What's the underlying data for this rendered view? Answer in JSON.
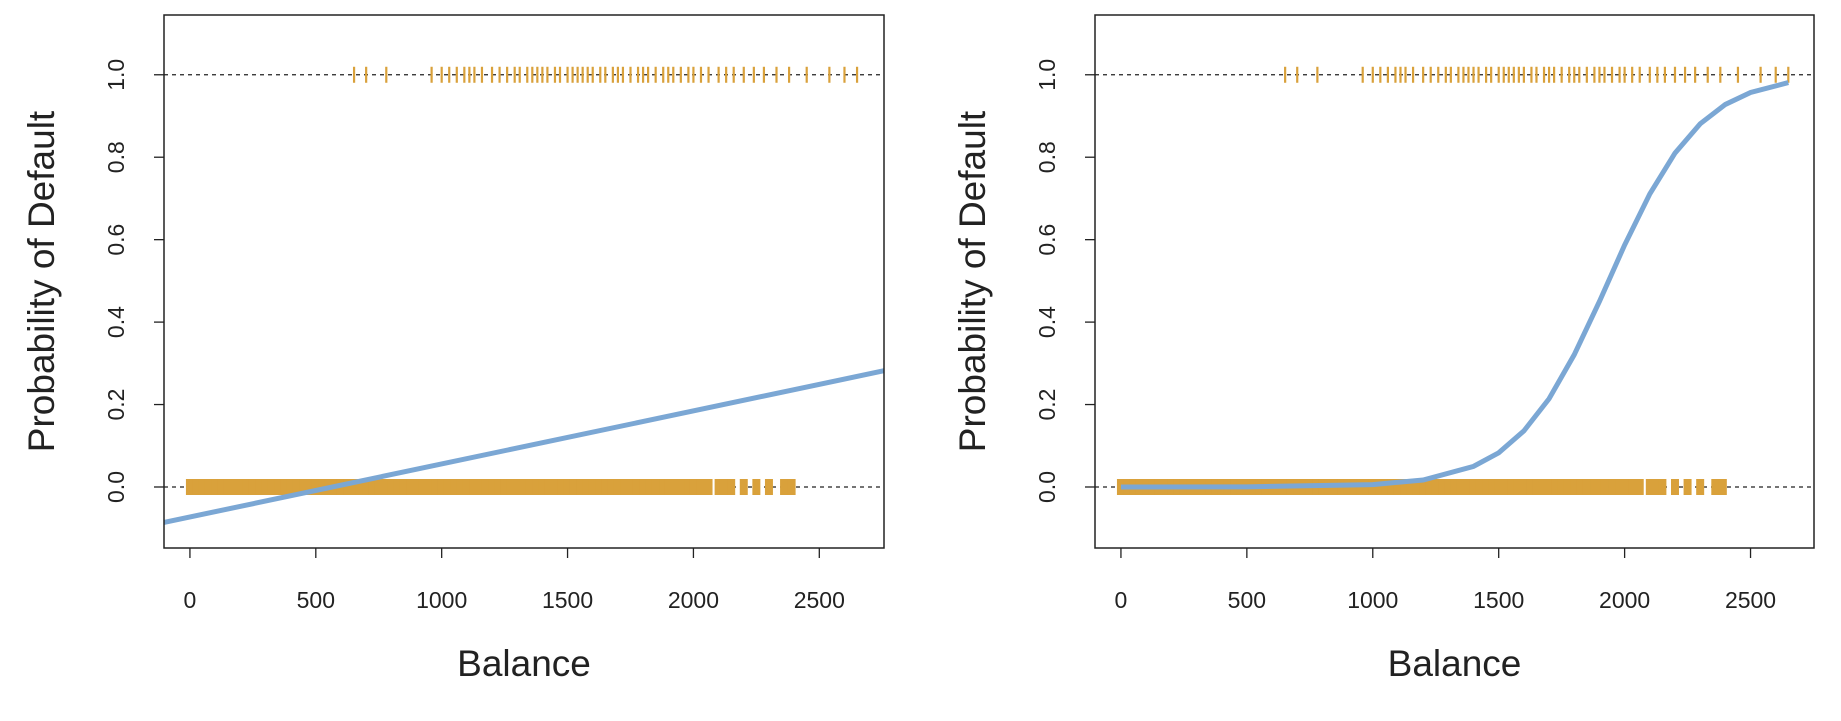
{
  "chart_data": [
    {
      "type": "line",
      "xlabel": "Balance",
      "ylabel": "Probability of Default",
      "xlim": [
        -103,
        2757
      ],
      "ylim": [
        -0.148,
        1.145
      ],
      "xticks": [
        0,
        500,
        1000,
        1500,
        2000,
        2500
      ],
      "yticks": [
        {
          "value": 0,
          "label": "0.0"
        },
        {
          "value": 0.2,
          "label": "0.2"
        },
        {
          "value": 0.4,
          "label": "0.4"
        },
        {
          "value": 0.6,
          "label": "0.6"
        },
        {
          "value": 0.8,
          "label": "0.8"
        },
        {
          "value": 1,
          "label": "1.0"
        }
      ],
      "hlines": [
        0,
        1
      ],
      "rugs": [
        {
          "color": "#d9a13b",
          "y": 1,
          "x": [
            652,
            700,
            780,
            960,
            1000,
            1030,
            1060,
            1090,
            1110,
            1130,
            1160,
            1200,
            1230,
            1260,
            1290,
            1310,
            1340,
            1360,
            1380,
            1400,
            1420,
            1450,
            1470,
            1500,
            1520,
            1540,
            1560,
            1580,
            1600,
            1630,
            1650,
            1680,
            1700,
            1720,
            1750,
            1780,
            1800,
            1820,
            1850,
            1880,
            1900,
            1920,
            1950,
            1980,
            2000,
            2030,
            2060,
            2100,
            2130,
            2160,
            2200,
            2240,
            2280,
            2330,
            2380,
            2450,
            2540,
            2600,
            2650
          ]
        },
        {
          "color": "#d9a13b",
          "y": 0,
          "x": [
            0,
            25,
            50,
            75,
            100,
            125,
            150,
            175,
            200,
            225,
            250,
            275,
            300,
            325,
            350,
            375,
            400,
            425,
            450,
            475,
            500,
            525,
            550,
            575,
            600,
            625,
            650,
            675,
            700,
            725,
            750,
            775,
            800,
            825,
            850,
            875,
            900,
            925,
            950,
            975,
            1000,
            1025,
            1050,
            1075,
            1100,
            1125,
            1150,
            1175,
            1200,
            1225,
            1250,
            1275,
            1300,
            1325,
            1350,
            1375,
            1400,
            1425,
            1450,
            1475,
            1500,
            1525,
            1550,
            1575,
            1600,
            1625,
            1650,
            1675,
            1700,
            1725,
            1750,
            1775,
            1800,
            1825,
            1850,
            1880,
            1900,
            1920,
            1950,
            1980,
            2000,
            2030,
            2060,
            2100,
            2120,
            2150,
            2200,
            2250,
            2300,
            2360,
            2390
          ]
        }
      ],
      "series": [
        {
          "color": "#7ba7d4",
          "x": [
            -103,
            2757
          ],
          "values": [
            -0.086,
            0.282
          ]
        }
      ]
    },
    {
      "type": "line",
      "xlabel": "Balance",
      "ylabel": "Probability of Default",
      "xlim": [
        -103,
        2752
      ],
      "ylim": [
        -0.148,
        1.145
      ],
      "xticks": [
        0,
        500,
        1000,
        1500,
        2000,
        2500
      ],
      "yticks": [
        {
          "value": 0,
          "label": "0.0"
        },
        {
          "value": 0.2,
          "label": "0.2"
        },
        {
          "value": 0.4,
          "label": "0.4"
        },
        {
          "value": 0.6,
          "label": "0.6"
        },
        {
          "value": 0.8,
          "label": "0.8"
        },
        {
          "value": 1,
          "label": "1.0"
        }
      ],
      "hlines": [
        0,
        1
      ],
      "rugs": [
        {
          "color": "#d9a13b",
          "y": 1,
          "x": [
            652,
            700,
            780,
            960,
            1000,
            1030,
            1060,
            1090,
            1110,
            1130,
            1160,
            1200,
            1230,
            1260,
            1290,
            1310,
            1340,
            1360,
            1380,
            1400,
            1420,
            1450,
            1470,
            1500,
            1520,
            1540,
            1560,
            1580,
            1600,
            1630,
            1650,
            1680,
            1700,
            1720,
            1750,
            1780,
            1800,
            1820,
            1850,
            1880,
            1900,
            1920,
            1950,
            1980,
            2000,
            2030,
            2060,
            2100,
            2130,
            2160,
            2200,
            2240,
            2280,
            2330,
            2380,
            2450,
            2540,
            2600,
            2650
          ]
        },
        {
          "color": "#d9a13b",
          "y": 0,
          "x": [
            0,
            25,
            50,
            75,
            100,
            125,
            150,
            175,
            200,
            225,
            250,
            275,
            300,
            325,
            350,
            375,
            400,
            425,
            450,
            475,
            500,
            525,
            550,
            575,
            600,
            625,
            650,
            675,
            700,
            725,
            750,
            775,
            800,
            825,
            850,
            875,
            900,
            925,
            950,
            975,
            1000,
            1025,
            1050,
            1075,
            1100,
            1125,
            1150,
            1175,
            1200,
            1225,
            1250,
            1275,
            1300,
            1325,
            1350,
            1375,
            1400,
            1425,
            1450,
            1475,
            1500,
            1525,
            1550,
            1575,
            1600,
            1625,
            1650,
            1675,
            1700,
            1725,
            1750,
            1775,
            1800,
            1825,
            1850,
            1880,
            1900,
            1920,
            1950,
            1980,
            2000,
            2030,
            2060,
            2100,
            2120,
            2150,
            2200,
            2250,
            2300,
            2360,
            2390
          ]
        }
      ],
      "series": [
        {
          "color": "#7ba7d4",
          "x": [
            0,
            500,
            1000,
            1200,
            1400,
            1500,
            1600,
            1700,
            1800,
            1900,
            2000,
            2100,
            2200,
            2300,
            2400,
            2500,
            2650
          ],
          "values": [
            2e-05,
            0.0004,
            0.0058,
            0.017,
            0.05,
            0.083,
            0.136,
            0.214,
            0.321,
            0.45,
            0.587,
            0.711,
            0.81,
            0.881,
            0.928,
            0.957,
            0.981
          ]
        }
      ]
    }
  ]
}
